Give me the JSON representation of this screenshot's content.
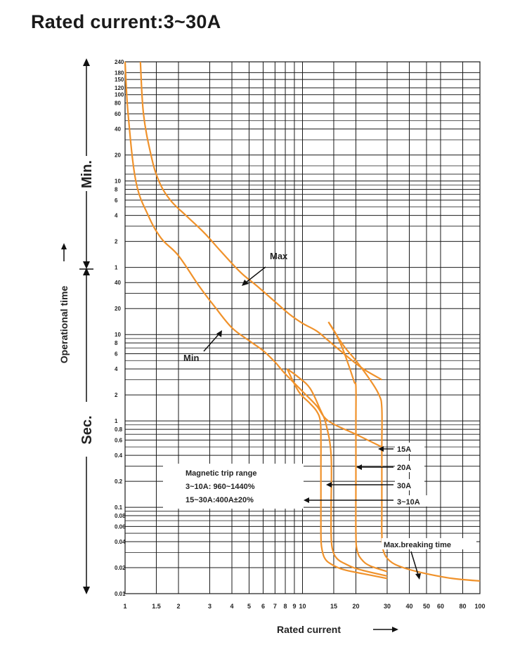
{
  "chart_data": {
    "type": "line",
    "title": "Rated current:3~30A",
    "xlabel": "Rated current",
    "ylabel": "Operational time",
    "x_scale": "log",
    "y_scale": "log",
    "x_range": [
      1,
      100
    ],
    "y_range_seconds": [
      0.01,
      14400
    ],
    "x_ticks": [
      {
        "v": 1,
        "label": "1"
      },
      {
        "v": 1.5,
        "label": "1.5"
      },
      {
        "v": 2,
        "label": "2"
      },
      {
        "v": 3,
        "label": "3"
      },
      {
        "v": 4,
        "label": "4"
      },
      {
        "v": 5,
        "label": "5"
      },
      {
        "v": 6,
        "label": "6"
      },
      {
        "v": 7,
        "label": "7"
      },
      {
        "v": 8,
        "label": "8"
      },
      {
        "v": 9,
        "label": "9"
      },
      {
        "v": 10,
        "label": "10"
      },
      {
        "v": 15,
        "label": "15"
      },
      {
        "v": 20,
        "label": "20"
      },
      {
        "v": 30,
        "label": "30"
      },
      {
        "v": 40,
        "label": "40"
      },
      {
        "v": 50,
        "label": "50"
      },
      {
        "v": 60,
        "label": "60"
      },
      {
        "v": 80,
        "label": "80"
      },
      {
        "v": 100,
        "label": "100"
      }
    ],
    "y_ticks_min": [
      {
        "v": 14400,
        "label": "240"
      },
      {
        "v": 10800,
        "label": "180"
      },
      {
        "v": 9000,
        "label": "150"
      },
      {
        "v": 7200,
        "label": "120"
      },
      {
        "v": 6000,
        "label": "100"
      },
      {
        "v": 4800,
        "label": "80"
      },
      {
        "v": 3600,
        "label": "60"
      },
      {
        "v": 2400,
        "label": "40"
      },
      {
        "v": 1200,
        "label": "20"
      },
      {
        "v": 600,
        "label": "10"
      },
      {
        "v": 480,
        "label": "8"
      },
      {
        "v": 360,
        "label": "6"
      },
      {
        "v": 240,
        "label": "4"
      },
      {
        "v": 120,
        "label": "2"
      },
      {
        "v": 60,
        "label": "1"
      }
    ],
    "y_ticks_sec": [
      {
        "v": 40,
        "label": "40"
      },
      {
        "v": 20,
        "label": "20"
      },
      {
        "v": 10,
        "label": "10"
      },
      {
        "v": 8,
        "label": "8"
      },
      {
        "v": 6,
        "label": "6"
      },
      {
        "v": 4,
        "label": "4"
      },
      {
        "v": 2,
        "label": "2"
      },
      {
        "v": 1,
        "label": "1"
      },
      {
        "v": 0.8,
        "label": "0.8"
      },
      {
        "v": 0.6,
        "label": "0.6"
      },
      {
        "v": 0.4,
        "label": "0.4"
      },
      {
        "v": 0.2,
        "label": "0.2"
      },
      {
        "v": 0.1,
        "label": "0.1"
      },
      {
        "v": 0.08,
        "label": "0.08"
      },
      {
        "v": 0.06,
        "label": "0.06"
      },
      {
        "v": 0.04,
        "label": "0.04"
      },
      {
        "v": 0.02,
        "label": "0.02"
      },
      {
        "v": 0.01,
        "label": "0.01"
      }
    ],
    "y_minor_seconds": [
      3000,
      1800,
      900,
      720,
      540,
      420,
      300,
      180,
      30,
      9,
      7,
      5,
      3,
      0.9,
      0.7,
      0.5,
      0.3,
      0.09,
      0.07,
      0.05,
      0.03
    ],
    "series": [
      {
        "name": "Min",
        "points": [
          [
            1.0,
            14400
          ],
          [
            1.04,
            3600
          ],
          [
            1.15,
            600
          ],
          [
            1.35,
            240
          ],
          [
            1.6,
            130
          ],
          [
            2.0,
            82
          ],
          [
            2.6,
            37
          ],
          [
            3.2,
            21
          ],
          [
            4.0,
            12
          ],
          [
            5.0,
            8.5
          ],
          [
            6.0,
            6.5
          ],
          [
            7.0,
            4.8
          ],
          [
            8.0,
            3.5
          ],
          [
            10.0,
            2.2
          ],
          [
            12.0,
            1.5
          ],
          [
            14.0,
            1.0
          ],
          [
            20.0,
            0.7
          ],
          [
            28.0,
            0.5
          ]
        ]
      },
      {
        "name": "Max",
        "points": [
          [
            1.22,
            14400
          ],
          [
            1.27,
            3600
          ],
          [
            1.4,
            1200
          ],
          [
            1.55,
            600
          ],
          [
            1.8,
            360
          ],
          [
            2.2,
            240
          ],
          [
            2.8,
            150
          ],
          [
            3.5,
            90
          ],
          [
            4.5,
            52
          ],
          [
            5.5,
            37
          ],
          [
            7.0,
            24
          ],
          [
            8.5,
            17
          ],
          [
            10.0,
            13.5
          ],
          [
            12.0,
            11
          ],
          [
            14.0,
            8.5
          ],
          [
            18.0,
            5.5
          ],
          [
            22.0,
            4.0
          ],
          [
            28.0,
            3.0
          ]
        ]
      },
      {
        "name": "3~10A",
        "points": [
          [
            8.2,
            4.0
          ],
          [
            9.5,
            2.2
          ],
          [
            11.0,
            1.6
          ],
          [
            12.0,
            1.3
          ],
          [
            12.6,
            1.0
          ],
          [
            12.7,
            0.6
          ],
          [
            12.7,
            0.3
          ],
          [
            12.7,
            0.1
          ],
          [
            12.7,
            0.05
          ],
          [
            12.8,
            0.035
          ],
          [
            13.3,
            0.026
          ],
          [
            14.5,
            0.022
          ],
          [
            17.0,
            0.019
          ],
          [
            22.0,
            0.017
          ],
          [
            30.0,
            0.015
          ]
        ]
      },
      {
        "name": "30A",
        "points": [
          [
            8.2,
            4.0
          ],
          [
            9.5,
            3.2
          ],
          [
            11.0,
            2.4
          ],
          [
            12.5,
            1.4
          ],
          [
            13.6,
            0.9
          ],
          [
            14.5,
            0.4
          ],
          [
            14.5,
            0.1
          ],
          [
            14.5,
            0.05
          ],
          [
            14.7,
            0.034
          ],
          [
            15.5,
            0.026
          ],
          [
            17.5,
            0.022
          ],
          [
            21.0,
            0.019
          ],
          [
            30.0,
            0.016
          ]
        ]
      },
      {
        "name": "20A",
        "points": [
          [
            14.0,
            14
          ],
          [
            15.5,
            10
          ],
          [
            17.0,
            6.5
          ],
          [
            18.5,
            4.0
          ],
          [
            19.6,
            2.8
          ],
          [
            20.0,
            2.5
          ],
          [
            20.0,
            1.0
          ],
          [
            20.0,
            0.2
          ],
          [
            20.0,
            0.05
          ],
          [
            20.3,
            0.032
          ],
          [
            21.5,
            0.025
          ],
          [
            24.0,
            0.021
          ],
          [
            30.0,
            0.018
          ]
        ]
      },
      {
        "name": "15A",
        "points": [
          [
            14.0,
            14
          ],
          [
            17.0,
            7.5
          ],
          [
            20.0,
            5.0
          ],
          [
            24.0,
            3.0
          ],
          [
            27.0,
            2.0
          ],
          [
            28.0,
            1.4
          ],
          [
            28.0,
            0.5
          ],
          [
            28.0,
            0.1
          ],
          [
            28.0,
            0.05
          ],
          [
            28.5,
            0.032
          ],
          [
            31.0,
            0.024
          ],
          [
            37.0,
            0.02
          ],
          [
            50.0,
            0.017
          ],
          [
            70.0,
            0.015
          ],
          [
            100.0,
            0.014
          ]
        ]
      }
    ],
    "curve_labels": [
      "15A",
      "20A",
      "30A",
      "3~10A"
    ],
    "annotations": {
      "max": "Max",
      "min": "Min",
      "max_breaking": "Max.breaking time",
      "magnetic_title": "Magnetic trip range",
      "magnetic_line1": "3~10A: 960~1440%",
      "magnetic_line2": "15~30A:400A±20%"
    },
    "unit_labels": {
      "minutes": "Min.",
      "seconds": "Sec."
    },
    "colors": {
      "curve": "#f0922b",
      "grid": "#1a1a1a",
      "text": "#222222"
    }
  }
}
